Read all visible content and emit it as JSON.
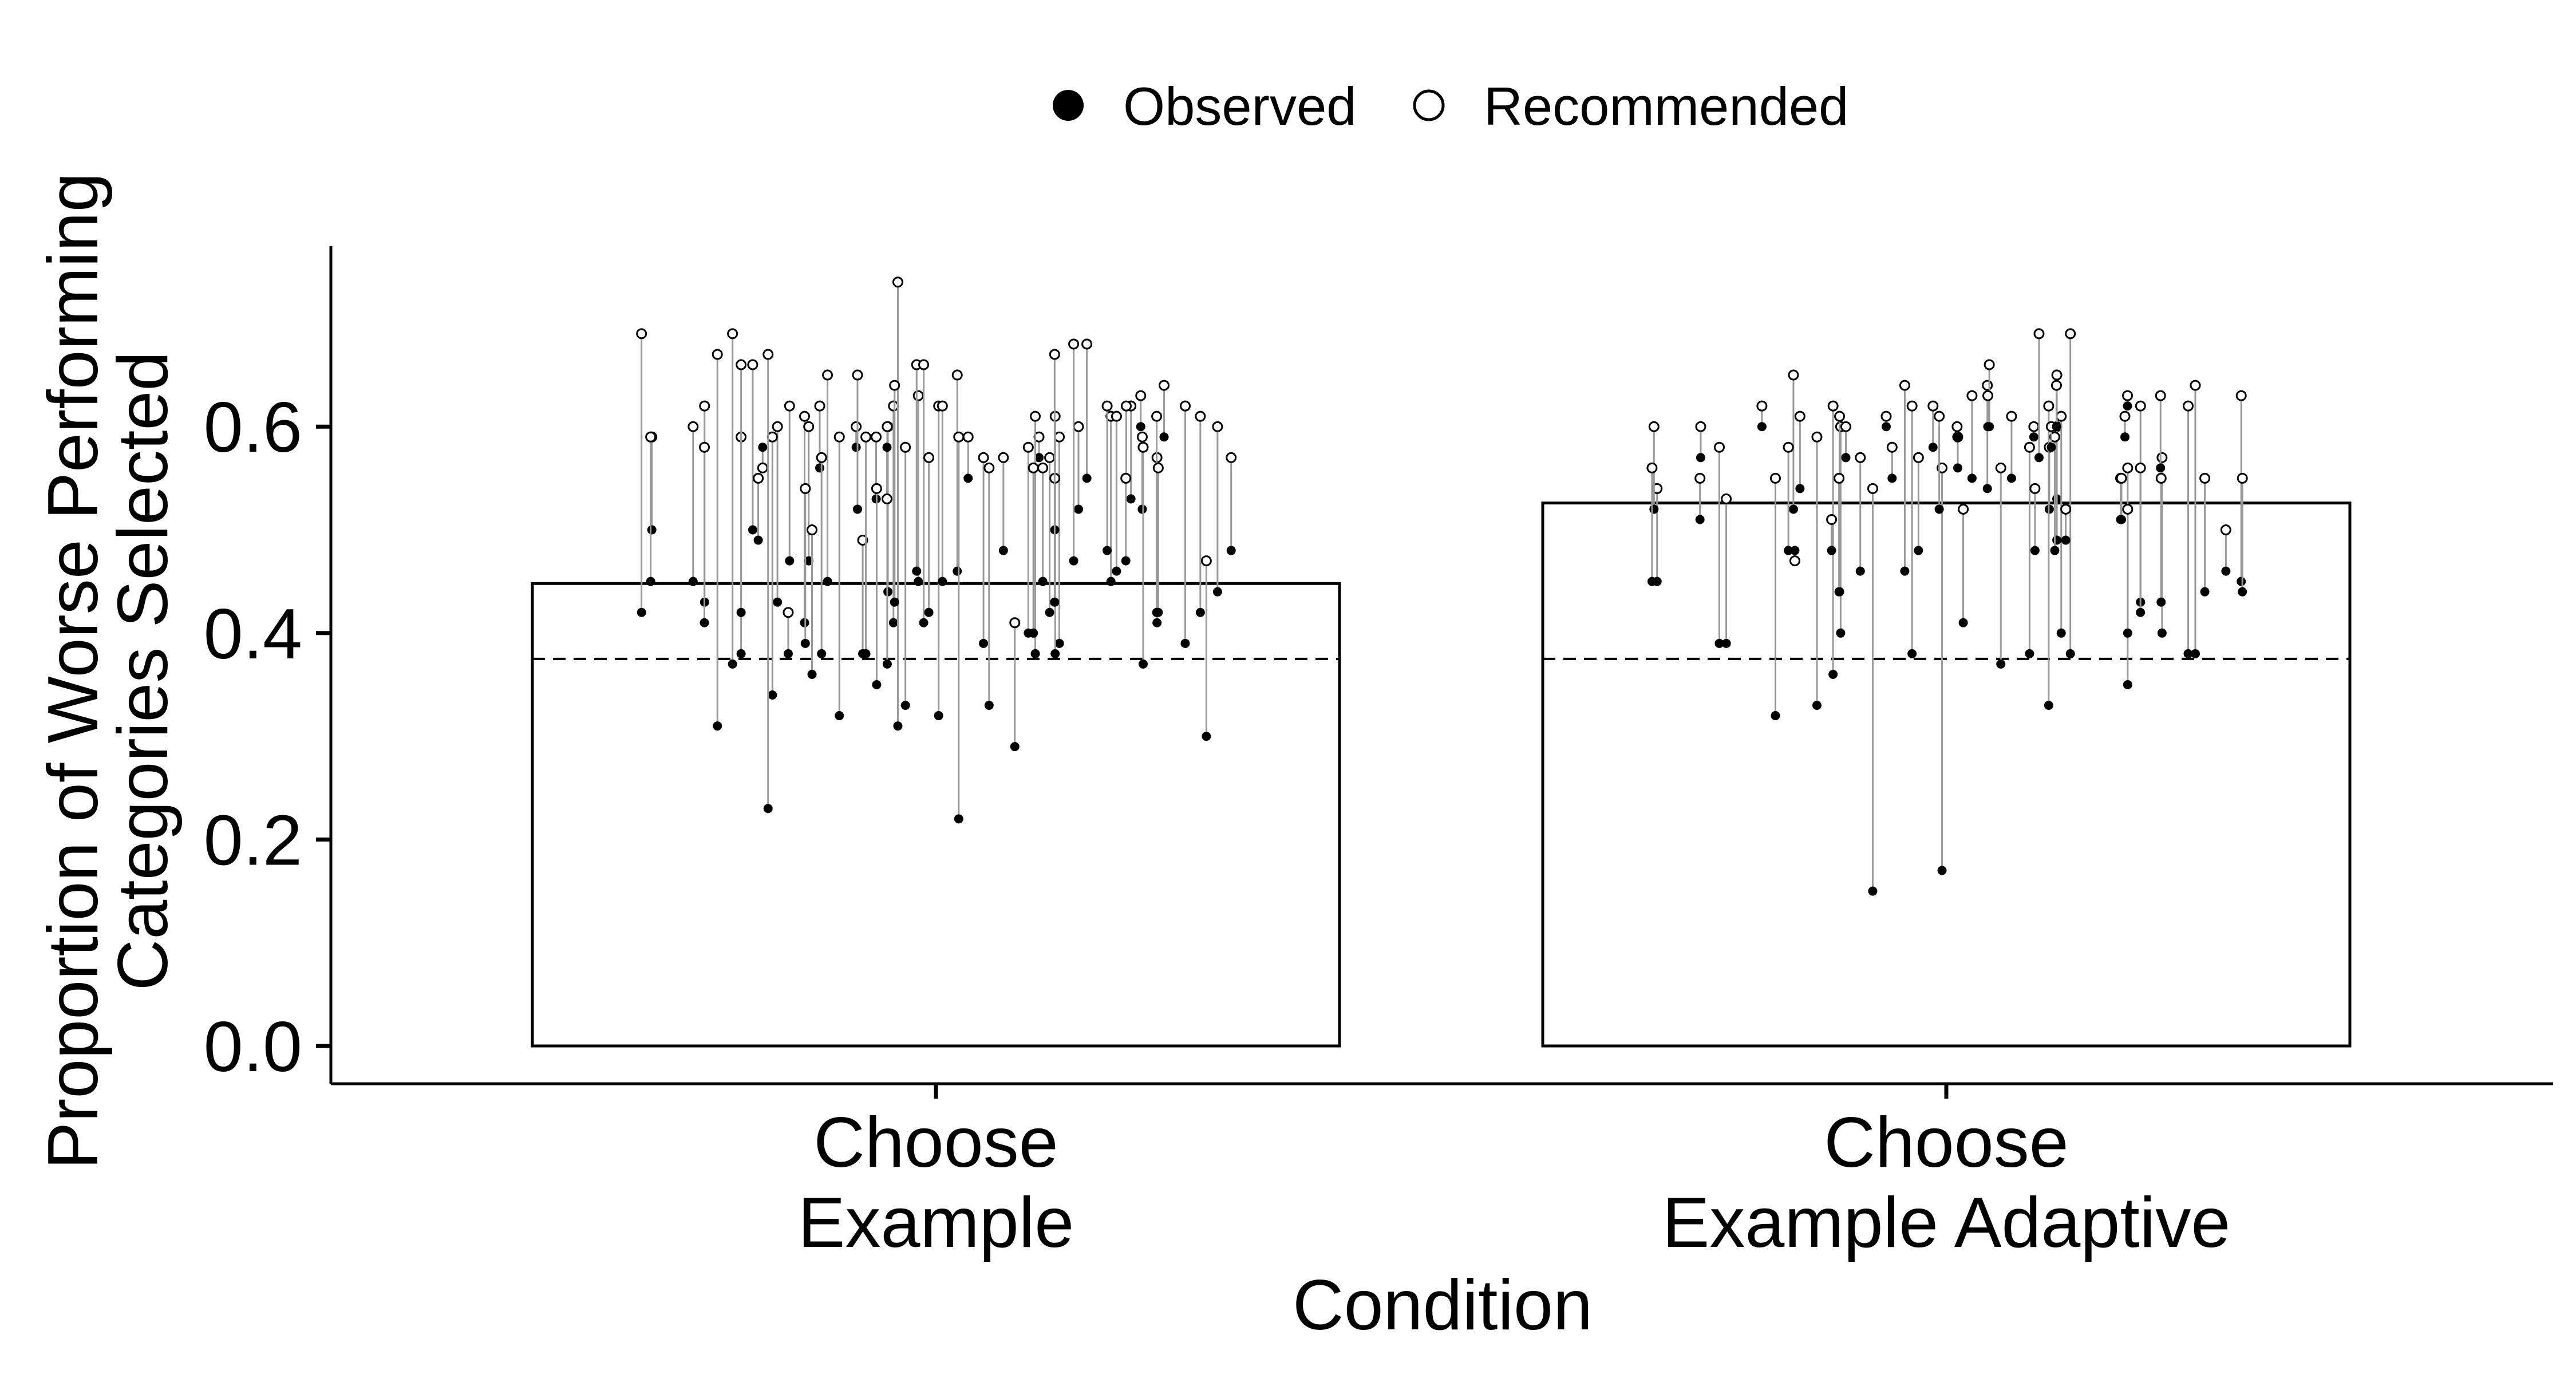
{
  "chart_data": {
    "type": "bar",
    "xlabel": "Condition",
    "ylabel_lines": [
      "Proportion of Worse Performing",
      "Categories Selected"
    ],
    "ylim": [
      0,
      0.75
    ],
    "yticks": [
      "0.0",
      "0.2",
      "0.4",
      "0.6"
    ],
    "ytick_values": [
      0.0,
      0.2,
      0.4,
      0.6
    ],
    "reference_line": 0.375,
    "legend": {
      "placement": "top-center",
      "entries": [
        {
          "label": "Observed",
          "marker": "filled-circle"
        },
        {
          "label": "Recommended",
          "marker": "open-circle"
        }
      ]
    },
    "categories": [
      {
        "label_lines": [
          "Choose",
          "Example"
        ],
        "bar_value": 0.448
      },
      {
        "label_lines": [
          "Choose",
          "Example Adaptive"
        ],
        "bar_value": 0.526
      }
    ],
    "participants": [
      [
        [
          0.4,
          0.58
        ],
        [
          0.56,
          0.62
        ],
        [
          0.29,
          0.41
        ],
        [
          0.48,
          0.57
        ],
        [
          0.45,
          0.56
        ],
        [
          0.57,
          0.59
        ],
        [
          0.38,
          0.59
        ],
        [
          0.59,
          0.64
        ],
        [
          0.39,
          0.59
        ],
        [
          0.53,
          0.62
        ],
        [
          0.52,
          0.6
        ],
        [
          0.32,
          0.59
        ],
        [
          0.45,
          0.61
        ],
        [
          0.5,
          0.66
        ],
        [
          0.39,
          0.57
        ],
        [
          0.43,
          0.6
        ],
        [
          0.58,
          0.56
        ],
        [
          0.48,
          0.62
        ],
        [
          0.41,
          0.57
        ],
        [
          0.6,
          0.63
        ],
        [
          0.43,
          0.62
        ],
        [
          0.45,
          0.63
        ],
        [
          0.47,
          0.68
        ],
        [
          0.58,
          0.6
        ],
        [
          0.41,
          0.61
        ],
        [
          0.52,
          0.65
        ],
        [
          0.39,
          0.62
        ],
        [
          0.42,
          0.61
        ],
        [
          0.44,
          0.6
        ],
        [
          0.41,
          0.62
        ],
        [
          0.55,
          0.62
        ],
        [
          0.42,
          0.66
        ],
        [
          0.37,
          0.69
        ],
        [
          0.45,
          0.65
        ],
        [
          0.38,
          0.49
        ],
        [
          0.32,
          0.62
        ],
        [
          0.44,
          0.6
        ],
        [
          0.46,
          0.66
        ],
        [
          0.55,
          0.68
        ],
        [
          0.34,
          0.59
        ],
        [
          0.31,
          0.74
        ],
        [
          0.42,
          0.56
        ],
        [
          0.47,
          0.55
        ],
        [
          0.38,
          0.57
        ],
        [
          0.46,
          0.65
        ],
        [
          0.52,
          0.59
        ],
        [
          0.38,
          0.61
        ],
        [
          0.41,
          0.58
        ],
        [
          0.33,
          0.56
        ],
        [
          0.45,
          0.6
        ],
        [
          0.42,
          0.57
        ],
        [
          0.53,
          0.59
        ],
        [
          0.5,
          0.55
        ],
        [
          0.47,
          0.62
        ],
        [
          0.38,
          0.59
        ],
        [
          0.35,
          0.54
        ],
        [
          0.37,
          0.6
        ],
        [
          0.42,
          0.61
        ],
        [
          0.43,
          0.64
        ],
        [
          0.5,
          0.59
        ],
        [
          0.38,
          0.42
        ],
        [
          0.31,
          0.67
        ],
        [
          0.38,
          0.61
        ],
        [
          0.42,
          0.69
        ],
        [
          0.47,
          0.6
        ],
        [
          0.39,
          0.54
        ],
        [
          0.58,
          0.53
        ],
        [
          0.23,
          0.67
        ],
        [
          0.46,
          0.61
        ],
        [
          0.41,
          0.66
        ],
        [
          0.22,
          0.59
        ],
        [
          0.37,
          0.58
        ],
        [
          0.48,
          0.57
        ],
        [
          0.43,
          0.67
        ],
        [
          0.45,
          0.59
        ],
        [
          0.55,
          0.59
        ],
        [
          0.33,
          0.58
        ],
        [
          0.45,
          0.62
        ],
        [
          0.4,
          0.56
        ],
        [
          0.36,
          0.5
        ],
        [
          0.42,
          0.57
        ],
        [
          0.3,
          0.47
        ],
        [
          0.49,
          0.55
        ]
      ],
      [
        [
          0.56,
          0.59
        ],
        [
          0.38,
          0.62
        ],
        [
          0.55,
          0.61
        ],
        [
          0.45,
          0.54
        ],
        [
          0.38,
          0.58
        ],
        [
          0.48,
          0.54
        ],
        [
          0.6,
          0.61
        ],
        [
          0.35,
          0.56
        ],
        [
          0.53,
          0.6
        ],
        [
          0.33,
          0.59
        ],
        [
          0.51,
          0.55
        ],
        [
          0.45,
          0.63
        ],
        [
          0.17,
          0.56
        ],
        [
          0.6,
          0.62
        ],
        [
          0.54,
          0.64
        ],
        [
          0.52,
          0.58
        ],
        [
          0.4,
          0.57
        ],
        [
          0.6,
          0.66
        ],
        [
          0.4,
          0.61
        ],
        [
          0.51,
          0.55
        ],
        [
          0.44,
          0.55
        ],
        [
          0.57,
          0.6
        ],
        [
          0.52,
          0.65
        ],
        [
          0.48,
          0.57
        ],
        [
          0.62,
          0.63
        ],
        [
          0.36,
          0.62
        ],
        [
          0.43,
          0.55
        ],
        [
          0.48,
          0.58
        ],
        [
          0.4,
          0.52
        ],
        [
          0.55,
          0.58
        ],
        [
          0.46,
          0.64
        ],
        [
          0.52,
          0.6
        ],
        [
          0.4,
          0.6
        ],
        [
          0.38,
          0.69
        ],
        [
          0.43,
          0.62
        ],
        [
          0.51,
          0.55
        ],
        [
          0.44,
          0.55
        ],
        [
          0.37,
          0.56
        ],
        [
          0.56,
          0.63
        ],
        [
          0.48,
          0.51
        ],
        [
          0.45,
          0.56
        ],
        [
          0.54,
          0.61
        ],
        [
          0.41,
          0.52
        ],
        [
          0.59,
          0.6
        ],
        [
          0.49,
          0.65
        ],
        [
          0.33,
          0.62
        ],
        [
          0.52,
          0.61
        ],
        [
          0.57,
          0.69
        ],
        [
          0.38,
          0.64
        ],
        [
          0.48,
          0.59
        ],
        [
          0.39,
          0.53
        ],
        [
          0.6,
          0.63
        ],
        [
          0.32,
          0.55
        ],
        [
          0.58,
          0.6
        ],
        [
          0.38,
          0.62
        ],
        [
          0.44,
          0.61
        ],
        [
          0.6,
          0.64
        ],
        [
          0.46,
          0.57
        ],
        [
          0.15,
          0.54
        ],
        [
          0.48,
          0.47
        ],
        [
          0.57,
          0.6
        ],
        [
          0.39,
          0.58
        ],
        [
          0.55,
          0.63
        ],
        [
          0.46,
          0.5
        ],
        [
          0.49,
          0.52
        ],
        [
          0.59,
          0.6
        ],
        [
          0.42,
          0.56
        ],
        [
          0.59,
          0.61
        ],
        [
          0.44,
          0.55
        ],
        [
          0.58,
          0.62
        ]
      ]
    ]
  }
}
